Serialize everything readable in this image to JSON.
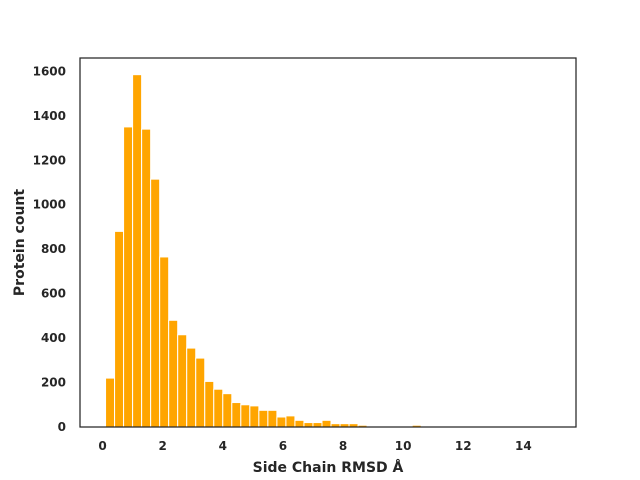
{
  "chart_data": {
    "type": "bar",
    "title": "",
    "xlabel": "Side Chain RMSD Å",
    "ylabel": "Protein count",
    "xlim": [
      -0.75,
      15.75
    ],
    "ylim": [
      0,
      1660
    ],
    "xticks": [
      0,
      2,
      4,
      6,
      8,
      10,
      12,
      14
    ],
    "xtick_labels": [
      "0",
      "2",
      "4",
      "6",
      "8",
      "10",
      "12",
      "14"
    ],
    "yticks": [
      0,
      200,
      400,
      600,
      800,
      1000,
      1200,
      1400,
      1600
    ],
    "ytick_labels": [
      "0",
      "200",
      "400",
      "600",
      "800",
      "1000",
      "1200",
      "1400",
      "1600"
    ],
    "bin_width": 0.3,
    "bin_start": 0.1,
    "bar_color": "#ffa500",
    "grid": false,
    "values": [
      220,
      880,
      1350,
      1585,
      1340,
      1115,
      765,
      480,
      415,
      355,
      310,
      205,
      170,
      150,
      110,
      100,
      95,
      75,
      75,
      45,
      50,
      30,
      20,
      20,
      30,
      15,
      15,
      15,
      8,
      3,
      3,
      0,
      0,
      0,
      8,
      0,
      0,
      0,
      0,
      0,
      0,
      0,
      0,
      0,
      0,
      0,
      0,
      0,
      0,
      0
    ]
  }
}
